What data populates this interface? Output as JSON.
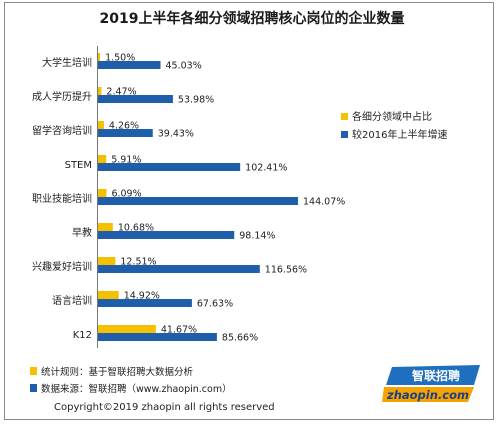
{
  "chart_data": {
    "type": "bar",
    "orientation": "horizontal",
    "title": "2019上半年各细分领域招聘核心岗位的企业数量",
    "categories": [
      "大学生培训",
      "成人学历提升",
      "留学咨询培训",
      "STEM",
      "职业技能培训",
      "早教",
      "兴趣爱好培训",
      "语言培训",
      "K12"
    ],
    "series": [
      {
        "name": "各细分领域中占比",
        "color": "#f5c000",
        "values": [
          1.5,
          2.47,
          4.26,
          5.91,
          6.09,
          10.68,
          12.51,
          14.92,
          41.67
        ],
        "labels": [
          "1.50%",
          "2.47%",
          "4.26%",
          "5.91%",
          "6.09%",
          "10.68%",
          "12.51%",
          "14.92%",
          "41.67%"
        ]
      },
      {
        "name": "较2016年上半年增速",
        "color": "#1f5eaa",
        "values": [
          45.03,
          53.98,
          39.43,
          102.41,
          144.07,
          98.14,
          116.56,
          67.63,
          85.66
        ],
        "labels": [
          "45.03%",
          "53.98%",
          "39.43%",
          "102.41%",
          "144.07%",
          "98.14%",
          "116.56%",
          "67.63%",
          "85.66%"
        ]
      }
    ],
    "legend_position": "right",
    "grid": false
  },
  "footnotes": [
    {
      "text": "统计规则：基于智联招聘大数据分析",
      "color": "#f5c000"
    },
    {
      "text": "数据来源：智联招聘（www.zhaopin.com）",
      "color": "#1f5eaa"
    }
  ],
  "copyright": "Copyright©2019 zhaopin all rights reserved",
  "logo": {
    "cn": "智联招聘",
    "en": "zhaopin.com"
  }
}
